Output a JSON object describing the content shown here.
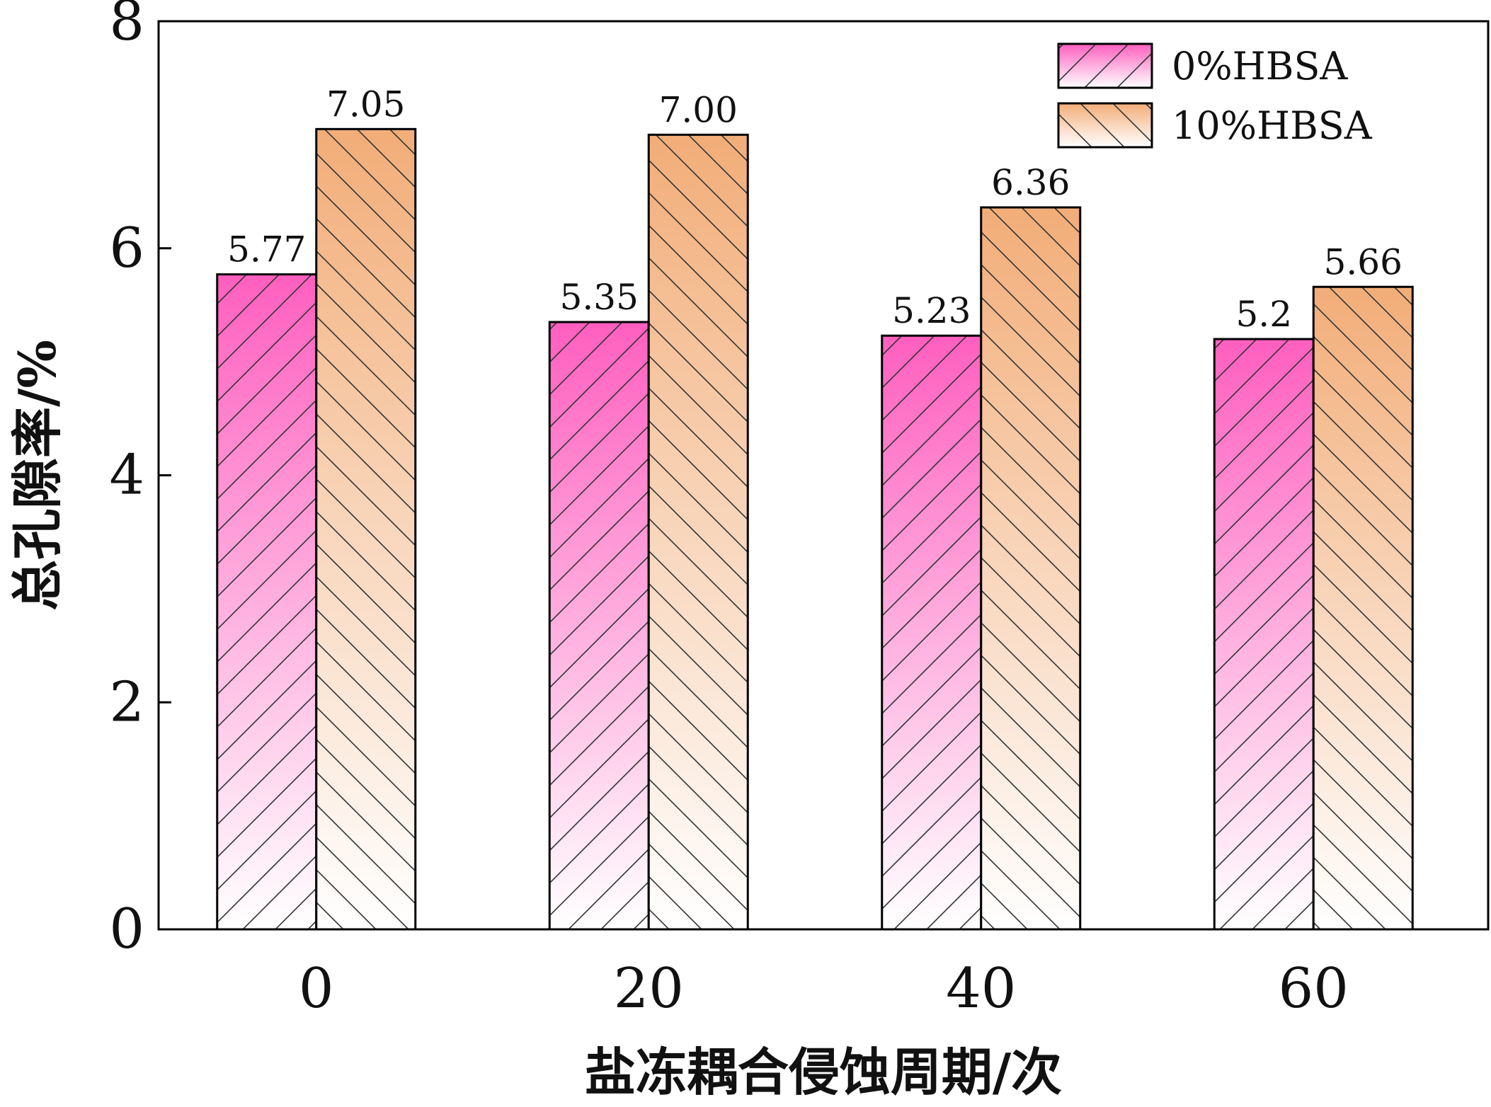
{
  "chart_data": {
    "type": "bar",
    "title": "",
    "xlabel": "盐冻耦合侵蚀周期/次",
    "ylabel": "总孔隙率/%",
    "categories": [
      "0",
      "20",
      "40",
      "60"
    ],
    "ylim": [
      0,
      8
    ],
    "yticks": [
      "0",
      "2",
      "4",
      "6",
      "8"
    ],
    "legend_position": "top-right",
    "grid": false,
    "series": [
      {
        "name": "0%HBSA",
        "values": [
          5.77,
          5.35,
          5.23,
          5.2
        ],
        "labels": [
          "5.77",
          "5.35",
          "5.23",
          "5.2"
        ],
        "color_top": "#ff5fbf",
        "color_bottom": "#ffffff",
        "hatch": "forward-diagonal"
      },
      {
        "name": "10%HBSA",
        "values": [
          7.05,
          7.0,
          6.36,
          5.66
        ],
        "labels": [
          "7.05",
          "7.00",
          "6.36",
          "5.66"
        ],
        "color_top": "#f2ad78",
        "color_bottom": "#ffffff",
        "hatch": "back-diagonal"
      }
    ]
  }
}
